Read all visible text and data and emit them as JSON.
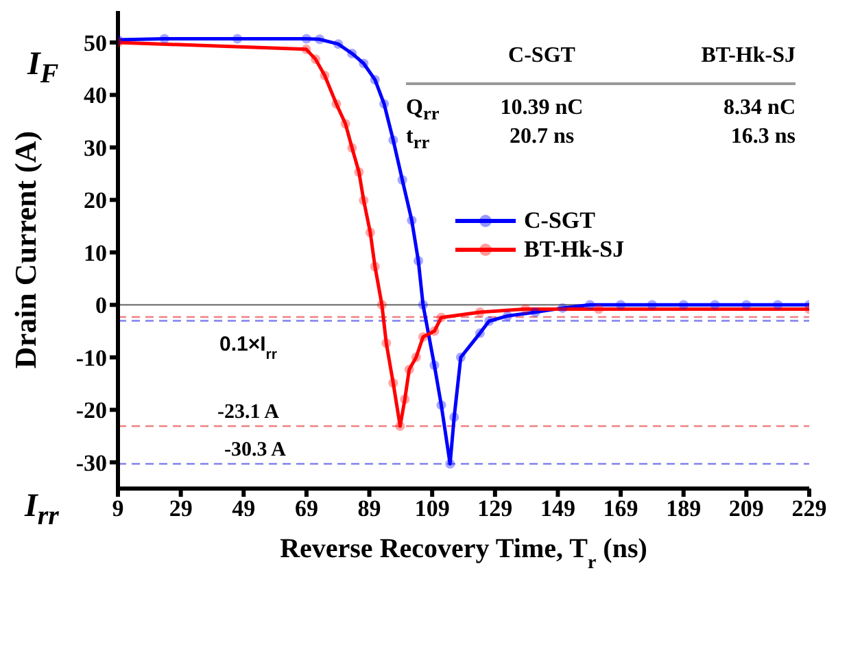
{
  "chart_data": {
    "type": "line",
    "xlabel": "Reverse Recovery Time, T$_{r}$ (ns)",
    "ylabel": "Drain Current (A)",
    "series": [
      {
        "name": "C-SGT",
        "color": "#0000ff",
        "x": [
          9,
          23.8,
          47,
          69,
          73.2,
          79.1,
          83.5,
          87.2,
          90.8,
          93.7,
          96.6,
          99.5,
          102.5,
          104.6,
          106.1,
          109.7,
          111.9,
          114.7,
          116,
          118.1,
          124.2,
          127.1,
          133,
          141.8,
          150.5,
          159.2,
          169,
          179,
          189,
          199,
          209,
          219,
          229
        ],
        "values": [
          50.5,
          50.7,
          50.7,
          50.7,
          50.6,
          49.7,
          47.9,
          46,
          42.9,
          38.3,
          31.4,
          23.8,
          16.1,
          8.4,
          0,
          -11.5,
          -19.1,
          -30.3,
          -21.4,
          -10,
          -5.4,
          -3.1,
          -2.1,
          -1.4,
          -0.6,
          0,
          0,
          0,
          0,
          0,
          0,
          0,
          0
        ]
      },
      {
        "name": "BT-Hk-SJ",
        "color": "#ff0000",
        "x": [
          9,
          68.9,
          71.9,
          74.8,
          78.5,
          81.4,
          83.5,
          85.7,
          87.2,
          89.3,
          90.8,
          93,
          94.4,
          96.6,
          98.8,
          100.3,
          101.7,
          103.9,
          106.1,
          109.7,
          111.9,
          124.2,
          138.7,
          162,
          229
        ],
        "values": [
          50,
          48.7,
          46.8,
          43.7,
          38.3,
          34.5,
          29.9,
          25.3,
          19.9,
          13.8,
          7.3,
          0,
          -7.3,
          -14.9,
          -23.1,
          -18,
          -12.3,
          -10,
          -6.1,
          -5,
          -2.4,
          -1.4,
          -0.8,
          -0.8,
          -0.8
        ]
      }
    ],
    "xlim": [
      9,
      229
    ],
    "xticks": [
      9,
      29,
      49,
      69,
      89,
      109,
      129,
      149,
      169,
      189,
      209,
      229
    ],
    "ylim": [
      -35,
      56
    ],
    "yticks": [
      -30,
      -20,
      -10,
      0,
      10,
      20,
      30,
      40,
      50
    ],
    "marker": "circle",
    "line_style": "solid",
    "legend": "right",
    "ref_lines": [
      {
        "axis": "y",
        "value": 0,
        "color": "#808080",
        "line_style": "solid"
      },
      {
        "axis": "y",
        "value": -2.31,
        "color": "#f08080",
        "line_style": "dashed"
      },
      {
        "axis": "y",
        "value": -3.03,
        "color": "#8080f0",
        "line_style": "dashed",
        "label": "0.1×I$_{rr}$"
      },
      {
        "axis": "y",
        "value": -23.1,
        "color": "#f08080",
        "line_style": "dashed",
        "label": "-23.1 A"
      },
      {
        "axis": "y",
        "value": -30.3,
        "color": "#8080f0",
        "line_style": "dashed",
        "label": "-30.3 A"
      }
    ],
    "annotations": [
      "C-SGT",
      "BT-Hk-SJ",
      "Q$_{rr}$",
      "10.39 nC",
      "8.34 nC",
      "t$_{rr}$",
      "20.7 ns",
      "16.3 ns",
      "I$_{F}$",
      "I$_{rr}$"
    ]
  }
}
